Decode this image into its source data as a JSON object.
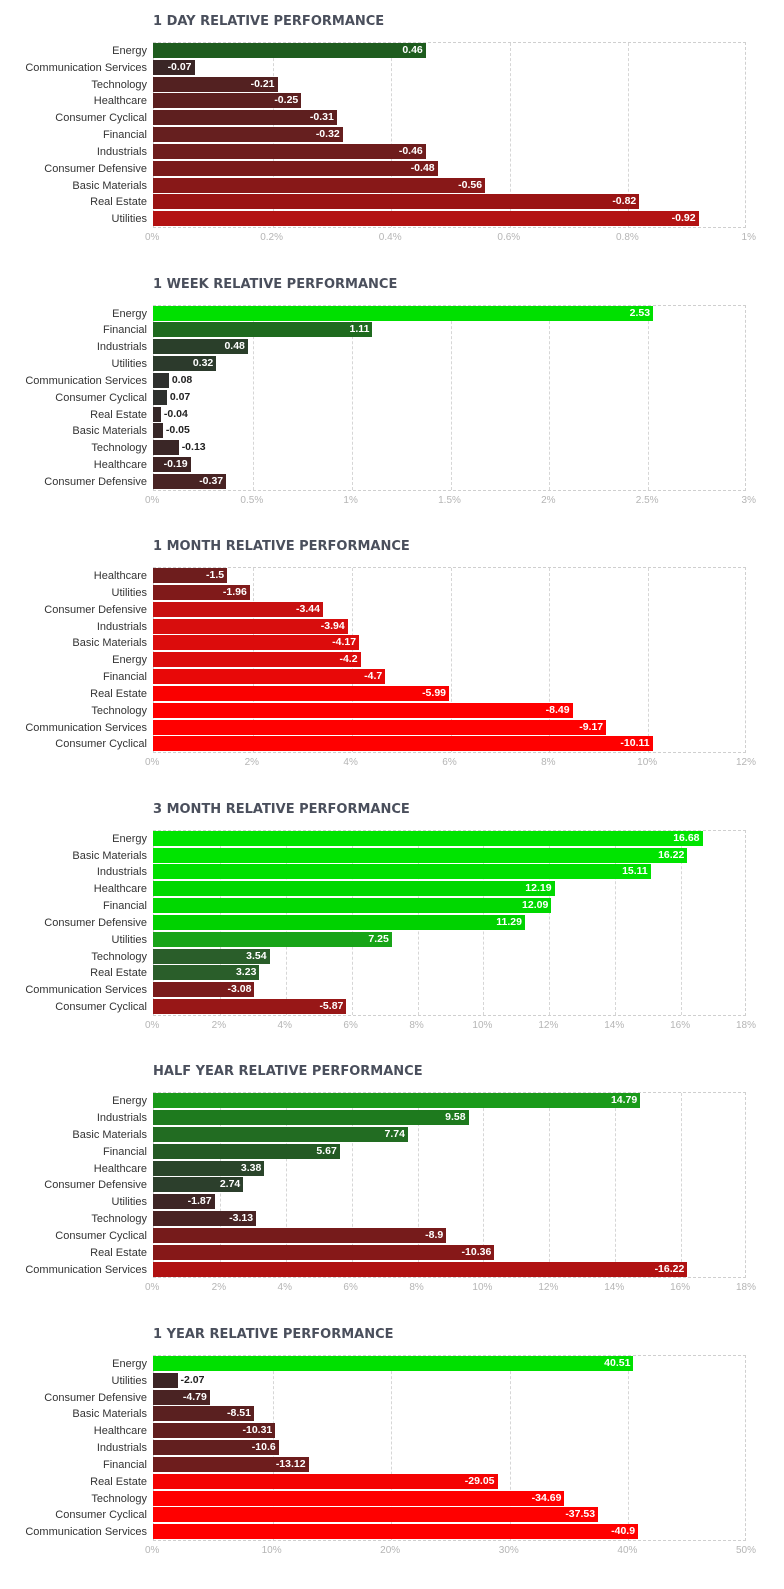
{
  "chart_data": [
    {
      "type": "bar",
      "orientation": "horizontal",
      "title": "1 DAY RELATIVE PERFORMANCE",
      "categories": [
        "Energy",
        "Communication Services",
        "Technology",
        "Healthcare",
        "Consumer Cyclical",
        "Financial",
        "Industrials",
        "Consumer Defensive",
        "Basic Materials",
        "Real Estate",
        "Utilities"
      ],
      "values": [
        0.46,
        -0.07,
        -0.21,
        -0.25,
        -0.31,
        -0.32,
        -0.46,
        -0.48,
        -0.56,
        -0.82,
        -0.92
      ],
      "value_labels": [
        "0.46",
        "-0.07",
        "-0.21",
        "-0.25",
        "-0.31",
        "-0.32",
        "-0.46",
        "-0.48",
        "-0.56",
        "-0.82",
        "-0.92"
      ],
      "bar_colors": [
        "#1e5c1e",
        "#3a2626",
        "#532121",
        "#5c2020",
        "#5e1f1f",
        "#661f1f",
        "#6e1d1d",
        "#791b1b",
        "#881818",
        "#9a1414",
        "#b31313"
      ],
      "xlim": [
        0,
        1
      ],
      "ticks": [
        0,
        0.2,
        0.4,
        0.6,
        0.8,
        1
      ],
      "tick_labels": [
        "0%",
        "0.2%",
        "0.4%",
        "0.6%",
        "0.8%",
        "1%"
      ]
    },
    {
      "type": "bar",
      "orientation": "horizontal",
      "title": "1 WEEK RELATIVE PERFORMANCE",
      "categories": [
        "Energy",
        "Financial",
        "Industrials",
        "Utilities",
        "Communication Services",
        "Consumer Cyclical",
        "Real Estate",
        "Basic Materials",
        "Technology",
        "Healthcare",
        "Consumer Defensive"
      ],
      "values": [
        2.53,
        1.11,
        0.48,
        0.32,
        0.08,
        0.07,
        -0.04,
        -0.05,
        -0.13,
        -0.19,
        -0.37
      ],
      "value_labels": [
        "2.53",
        "1.11",
        "0.48",
        "0.32",
        "0.08",
        "0.07",
        "-0.04",
        "-0.05",
        "-0.13",
        "-0.19",
        "-0.37"
      ],
      "bar_colors": [
        "#00e000",
        "#1e6a1e",
        "#2a3f2a",
        "#2c3a2c",
        "#2e302e",
        "#2e302e",
        "#352828",
        "#372828",
        "#3a2626",
        "#3f2424",
        "#482323"
      ],
      "xlim": [
        0,
        3
      ],
      "ticks": [
        0,
        0.5,
        1,
        1.5,
        2,
        2.5,
        3
      ],
      "tick_labels": [
        "0%",
        "0.5%",
        "1%",
        "1.5%",
        "2%",
        "2.5%",
        "3%"
      ]
    },
    {
      "type": "bar",
      "orientation": "horizontal",
      "title": "1 MONTH RELATIVE PERFORMANCE",
      "categories": [
        "Healthcare",
        "Utilities",
        "Consumer Defensive",
        "Industrials",
        "Basic Materials",
        "Energy",
        "Financial",
        "Real Estate",
        "Technology",
        "Communication Services",
        "Consumer Cyclical"
      ],
      "values": [
        -1.5,
        -1.96,
        -3.44,
        -3.94,
        -4.17,
        -4.2,
        -4.7,
        -5.99,
        -8.49,
        -9.17,
        -10.11
      ],
      "value_labels": [
        "-1.5",
        "-1.96",
        "-3.44",
        "-3.94",
        "-4.17",
        "-4.2",
        "-4.7",
        "-5.99",
        "-8.49",
        "-9.17",
        "-10.11"
      ],
      "bar_colors": [
        "#6e1d1d",
        "#801a1a",
        "#c81010",
        "#d80d0d",
        "#dc0c0c",
        "#dc0c0c",
        "#e80808",
        "#fa0000",
        "#ff0000",
        "#ff0000",
        "#ff0000"
      ],
      "xlim": [
        0,
        12
      ],
      "ticks": [
        0,
        2,
        4,
        6,
        8,
        10,
        12
      ],
      "tick_labels": [
        "0%",
        "2%",
        "4%",
        "6%",
        "8%",
        "10%",
        "12%"
      ]
    },
    {
      "type": "bar",
      "orientation": "horizontal",
      "title": "3 MONTH RELATIVE PERFORMANCE",
      "categories": [
        "Energy",
        "Basic Materials",
        "Industrials",
        "Healthcare",
        "Financial",
        "Consumer Defensive",
        "Utilities",
        "Technology",
        "Real Estate",
        "Communication Services",
        "Consumer Cyclical"
      ],
      "values": [
        16.68,
        16.22,
        15.11,
        12.19,
        12.09,
        11.29,
        7.25,
        3.54,
        3.23,
        -3.08,
        -5.87
      ],
      "value_labels": [
        "16.68",
        "16.22",
        "15.11",
        "12.19",
        "12.09",
        "11.29",
        "7.25",
        "3.54",
        "3.23",
        "-3.08",
        "-5.87"
      ],
      "bar_colors": [
        "#00e400",
        "#00e400",
        "#00e000",
        "#00d800",
        "#00d800",
        "#00d200",
        "#18a418",
        "#2a5e2a",
        "#2a5e2a",
        "#7a1b1b",
        "#981717"
      ],
      "xlim": [
        0,
        18
      ],
      "ticks": [
        0,
        2,
        4,
        6,
        8,
        10,
        12,
        14,
        16,
        18
      ],
      "tick_labels": [
        "0%",
        "2%",
        "4%",
        "6%",
        "8%",
        "10%",
        "12%",
        "14%",
        "16%",
        "18%"
      ]
    },
    {
      "type": "bar",
      "orientation": "horizontal",
      "title": "HALF YEAR RELATIVE PERFORMANCE",
      "categories": [
        "Energy",
        "Industrials",
        "Basic Materials",
        "Financial",
        "Healthcare",
        "Consumer Defensive",
        "Utilities",
        "Technology",
        "Consumer Cyclical",
        "Real Estate",
        "Communication Services"
      ],
      "values": [
        14.79,
        9.58,
        7.74,
        5.67,
        3.38,
        2.74,
        -1.87,
        -3.13,
        -8.9,
        -10.36,
        -16.22
      ],
      "value_labels": [
        "14.79",
        "9.58",
        "7.74",
        "5.67",
        "3.38",
        "2.74",
        "-1.87",
        "-3.13",
        "-8.9",
        "-10.36",
        "-16.22"
      ],
      "bar_colors": [
        "#1a9a1a",
        "#1e7a1e",
        "#226c22",
        "#245a24",
        "#2a452a",
        "#2c3f2c",
        "#3e2525",
        "#492323",
        "#761b1b",
        "#861818",
        "#b01212"
      ],
      "xlim": [
        0,
        18
      ],
      "ticks": [
        0,
        2,
        4,
        6,
        8,
        10,
        12,
        14,
        16,
        18
      ],
      "tick_labels": [
        "0%",
        "2%",
        "4%",
        "6%",
        "8%",
        "10%",
        "12%",
        "14%",
        "16%",
        "18%"
      ]
    },
    {
      "type": "bar",
      "orientation": "horizontal",
      "title": "1 YEAR RELATIVE PERFORMANCE",
      "categories": [
        "Energy",
        "Utilities",
        "Consumer Defensive",
        "Basic Materials",
        "Healthcare",
        "Industrials",
        "Financial",
        "Real Estate",
        "Technology",
        "Consumer Cyclical",
        "Communication Services"
      ],
      "values": [
        40.51,
        -2.07,
        -4.79,
        -8.51,
        -10.31,
        -10.6,
        -13.12,
        -29.05,
        -34.69,
        -37.53,
        -40.9
      ],
      "value_labels": [
        "40.51",
        "-2.07",
        "-4.79",
        "-8.51",
        "-10.31",
        "-10.6",
        "-13.12",
        "-29.05",
        "-34.69",
        "-37.53",
        "-40.9"
      ],
      "bar_colors": [
        "#00e000",
        "#3c2525",
        "#4a2323",
        "#5a2020",
        "#621f1f",
        "#621f1f",
        "#6e1d1d",
        "#f40303",
        "#ff0000",
        "#ff0000",
        "#ff0000"
      ],
      "xlim": [
        0,
        50
      ],
      "ticks": [
        0,
        10,
        20,
        30,
        40,
        50
      ],
      "tick_labels": [
        "0%",
        "10%",
        "20%",
        "30%",
        "40%",
        "50%"
      ]
    }
  ]
}
